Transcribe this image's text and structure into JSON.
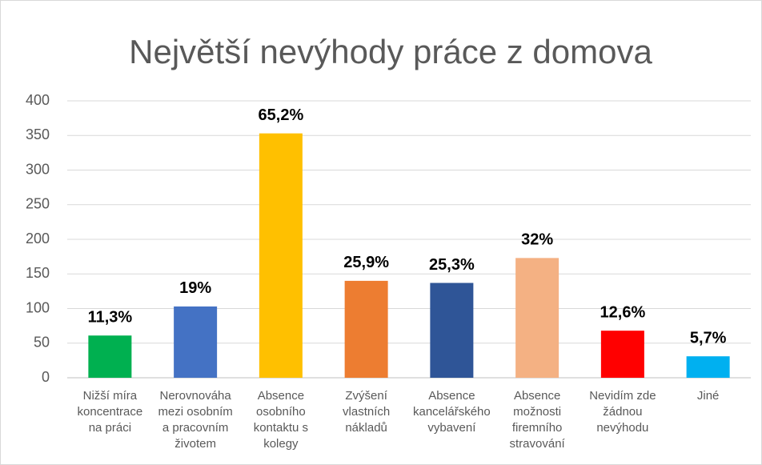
{
  "chart_data": {
    "type": "bar",
    "title": "Největší nevýhody práce z domova",
    "categories": [
      [
        "Nižší míra",
        "koncentrace",
        "na práci"
      ],
      [
        "Nerovnováha",
        "mezi osobním",
        "a pracovním",
        "životem"
      ],
      [
        "Absence",
        "osobního",
        "kontaktu s",
        "kolegy"
      ],
      [
        "Zvýšení",
        "vlastních",
        "nákladů"
      ],
      [
        "Absence",
        "kancelářského",
        "vybavení"
      ],
      [
        "Absence",
        "možnosti",
        "firemního",
        "stravování"
      ],
      [
        "Nevidím zde",
        "žádnou",
        "nevýhodu"
      ],
      [
        "Jiné"
      ]
    ],
    "values": [
      61,
      103,
      353,
      140,
      137,
      173,
      68,
      31
    ],
    "value_labels": [
      "11,3%",
      "19%",
      "65,2%",
      "25,9%",
      "25,3%",
      "32%",
      "12,6%",
      "5,7%"
    ],
    "colors": [
      "#00b050",
      "#4472c4",
      "#ffc000",
      "#ed7d31",
      "#2f5597",
      "#f4b183",
      "#ff0000",
      "#00b0f0"
    ],
    "ylim": [
      0,
      400
    ],
    "yticks": [
      0,
      50,
      100,
      150,
      200,
      250,
      300,
      350,
      400
    ],
    "grid": true
  }
}
